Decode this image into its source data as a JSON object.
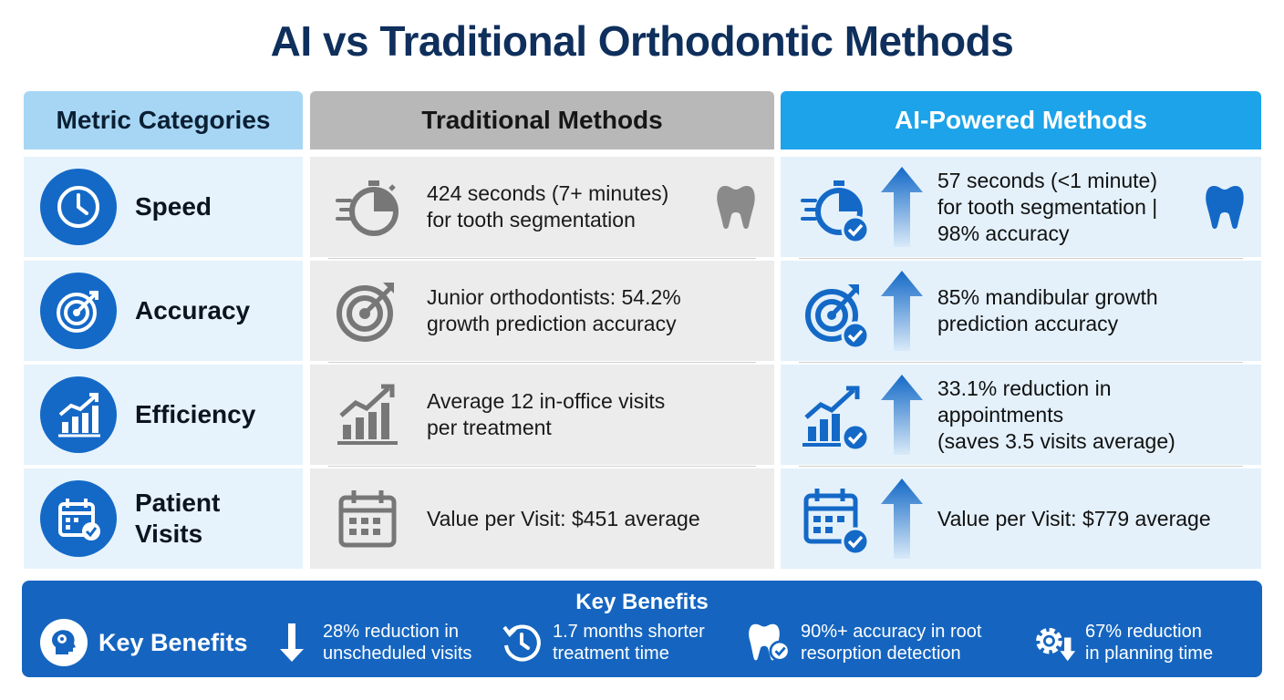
{
  "title": "AI vs Traditional Orthodontic Methods",
  "headers": {
    "metric": "Metric Categories",
    "traditional": "Traditional Methods",
    "ai": "AI-Powered Methods"
  },
  "rows": [
    {
      "metric": "Speed",
      "metric_icon": "clock-icon",
      "traditional": "424 seconds (7+ minutes)\nfor tooth segmentation",
      "traditional_icon": "stopwatch-icon",
      "ai": "57 seconds (<1 minute)\nfor tooth segmentation |\n98% accuracy",
      "ai_icon": "stopwatch-check-icon"
    },
    {
      "metric": "Accuracy",
      "metric_icon": "target-icon",
      "traditional": "Junior orthodontists: 54.2%\ngrowth prediction accuracy",
      "traditional_icon": "target-icon",
      "ai": "85% mandibular growth\nprediction accuracy",
      "ai_icon": "target-check-icon"
    },
    {
      "metric": "Efficiency",
      "metric_icon": "growth-chart-icon",
      "traditional": "Average 12 in-office visits\nper treatment",
      "traditional_icon": "growth-chart-icon",
      "ai": "33.1% reduction in\nappointments\n(saves 3.5 visits average)",
      "ai_icon": "growth-chart-check-icon"
    },
    {
      "metric": "Patient\nVisits",
      "metric_icon": "calendar-check-icon",
      "traditional": "Value per Visit: $451 average",
      "traditional_icon": "calendar-icon",
      "ai": "Value per Visit: $779 average",
      "ai_icon": "calendar-check-icon"
    }
  ],
  "benefits": {
    "title": "Key Benefits",
    "label": "Key Benefits",
    "items": [
      {
        "text": "28% reduction in\nunscheduled visits",
        "icon": "arrow-down-icon"
      },
      {
        "text": "1.7 months shorter\ntreatment time",
        "icon": "clock-rewind-icon"
      },
      {
        "text": "90%+ accuracy in root\nresorption detection",
        "icon": "tooth-check-icon"
      },
      {
        "text": "67% reduction\nin planning time",
        "icon": "gear-down-icon"
      }
    ]
  },
  "colors": {
    "title": "#0f2f5c",
    "primary_blue": "#1469c7",
    "ai_header": "#1ca3ea",
    "traditional_header": "#b8b8b8",
    "metric_header": "#a7d6f5",
    "benefits_bar": "#1565c0"
  }
}
